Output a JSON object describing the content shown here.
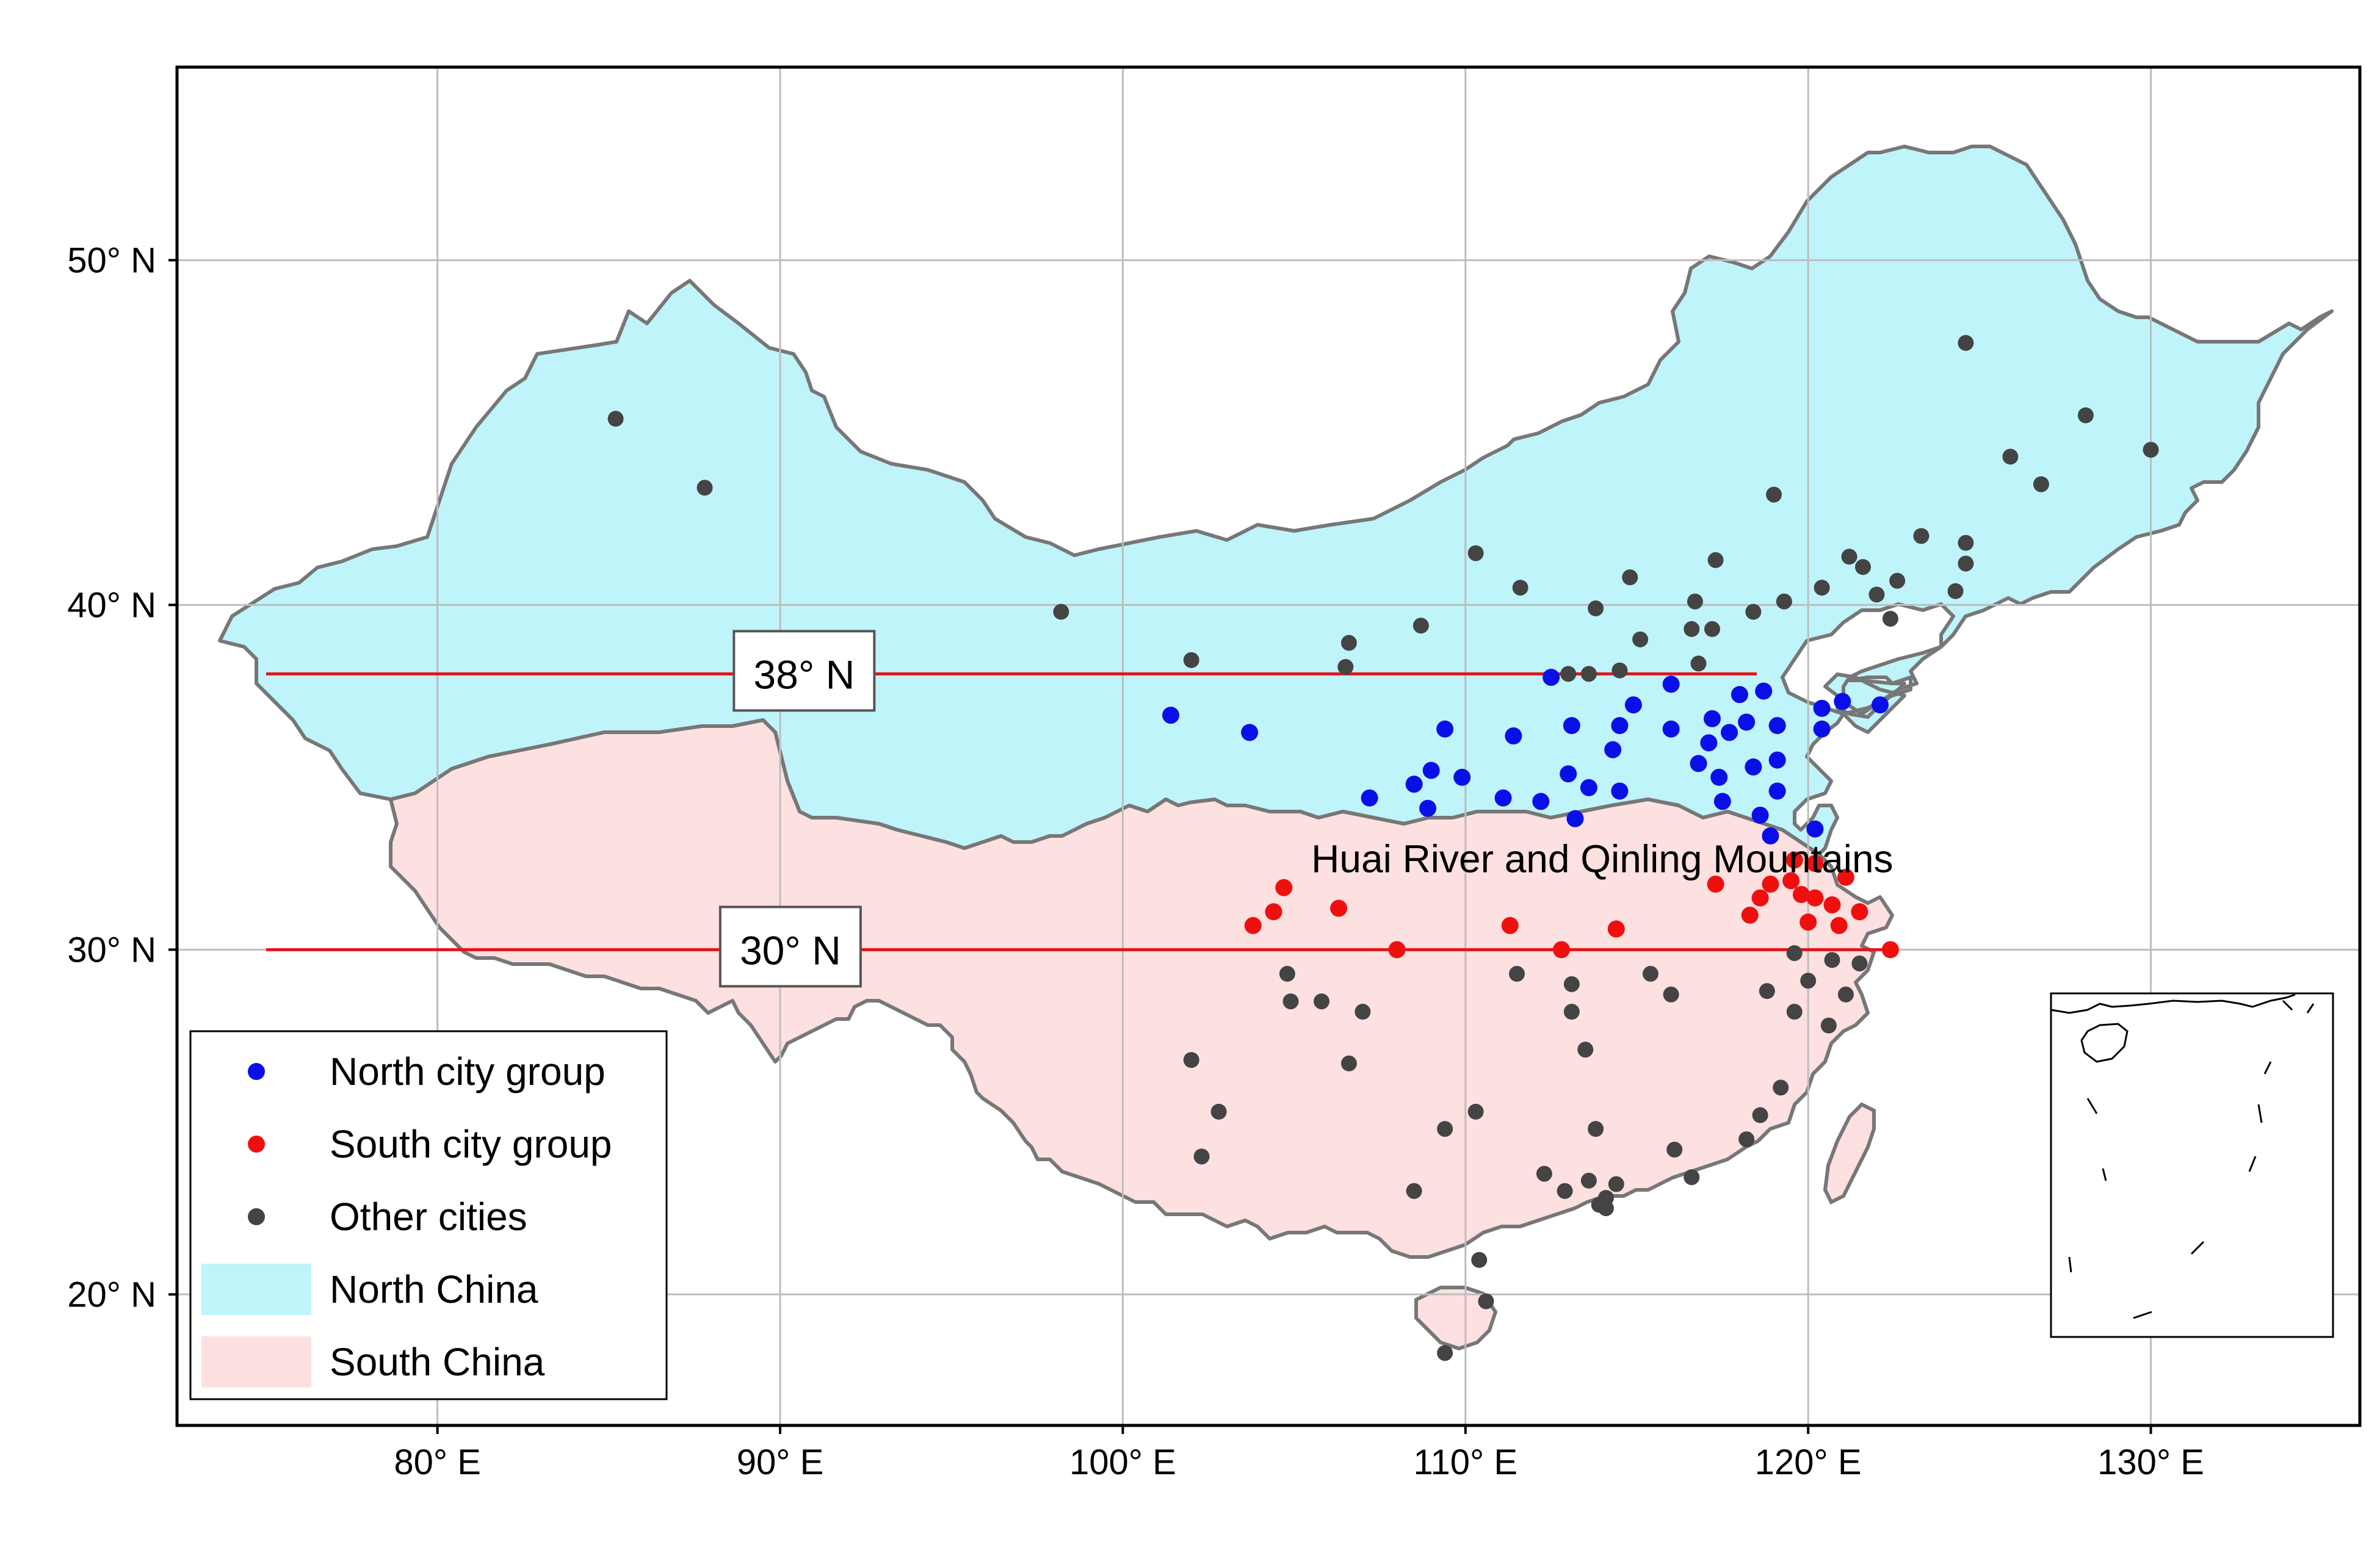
{
  "map": {
    "x_ticks": [
      {
        "lon": 80,
        "label": "80° E"
      },
      {
        "lon": 90,
        "label": "90° E"
      },
      {
        "lon": 100,
        "label": "100° E"
      },
      {
        "lon": 110,
        "label": "110° E"
      },
      {
        "lon": 120,
        "label": "120° E"
      },
      {
        "lon": 130,
        "label": "130° E"
      }
    ],
    "y_ticks": [
      {
        "lat": 20,
        "label": "20° N"
      },
      {
        "lat": 30,
        "label": "30° N"
      },
      {
        "lat": 40,
        "label": "40° N"
      },
      {
        "lat": 50,
        "label": "50° N"
      }
    ],
    "lines": [
      {
        "lat": 38,
        "lon_start": 75,
        "lon_end": 118.5,
        "label": "38° N",
        "label_lon": 90.7,
        "color": "#e3141c"
      },
      {
        "lat": 30,
        "lon_start": 75,
        "lon_end": 122.5,
        "label": "30° N",
        "label_lon": 90.3,
        "color": "#e3141c"
      }
    ],
    "annotation": {
      "text": "Huai River and Qinling Mountains",
      "lon": 105.5,
      "lat": 32.6
    },
    "regions": [
      {
        "name": "North China",
        "color": "#bff4fb"
      },
      {
        "name": "South China",
        "color": "#fde0e0"
      }
    ],
    "legend": [
      {
        "label": "North city group",
        "type": "point",
        "color": "#0a0fe8"
      },
      {
        "label": "South city group",
        "type": "point",
        "color": "#f00f0f"
      },
      {
        "label": "Other cities",
        "type": "point",
        "color": "#444444"
      },
      {
        "label": "North China",
        "type": "patch",
        "color": "#bff4fb"
      },
      {
        "label": "South China",
        "type": "patch",
        "color": "#fde0e0"
      }
    ],
    "border_color": "#777777",
    "north_cities": [
      [
        101.4,
        36.8
      ],
      [
        103.7,
        36.3
      ],
      [
        107.2,
        34.4
      ],
      [
        108.5,
        34.8
      ],
      [
        108.9,
        34.1
      ],
      [
        109.0,
        35.2
      ],
      [
        109.4,
        36.4
      ],
      [
        109.9,
        35.0
      ],
      [
        111.1,
        34.4
      ],
      [
        111.4,
        36.2
      ],
      [
        112.2,
        34.3
      ],
      [
        112.5,
        37.9
      ],
      [
        113.0,
        35.1
      ],
      [
        113.1,
        36.5
      ],
      [
        113.2,
        33.8
      ],
      [
        113.6,
        34.7
      ],
      [
        114.3,
        35.8
      ],
      [
        114.5,
        36.5
      ],
      [
        114.5,
        34.6
      ],
      [
        114.9,
        37.1
      ],
      [
        116.0,
        37.7
      ],
      [
        116.0,
        36.4
      ],
      [
        116.8,
        35.4
      ],
      [
        117.1,
        36.0
      ],
      [
        117.2,
        36.7
      ],
      [
        117.4,
        35.0
      ],
      [
        117.5,
        34.3
      ],
      [
        117.7,
        36.3
      ],
      [
        118.0,
        37.4
      ],
      [
        118.2,
        36.6
      ],
      [
        118.4,
        35.3
      ],
      [
        118.6,
        33.9
      ],
      [
        118.7,
        37.5
      ],
      [
        118.9,
        33.3
      ],
      [
        119.1,
        35.5
      ],
      [
        119.1,
        34.6
      ],
      [
        119.1,
        36.5
      ],
      [
        120.2,
        33.5
      ],
      [
        120.4,
        37.0
      ],
      [
        120.4,
        36.4
      ],
      [
        121.0,
        37.2
      ],
      [
        122.1,
        37.1
      ]
    ],
    "south_cities": [
      [
        103.8,
        30.7
      ],
      [
        104.4,
        31.1
      ],
      [
        104.7,
        31.8
      ],
      [
        106.3,
        31.2
      ],
      [
        108.0,
        30.0
      ],
      [
        111.3,
        30.7
      ],
      [
        112.8,
        30.0
      ],
      [
        114.4,
        30.6
      ],
      [
        117.3,
        31.9
      ],
      [
        118.3,
        31.0
      ],
      [
        118.6,
        31.5
      ],
      [
        118.9,
        31.9
      ],
      [
        119.5,
        32.0
      ],
      [
        119.6,
        32.6
      ],
      [
        119.8,
        31.6
      ],
      [
        120.0,
        30.8
      ],
      [
        120.2,
        31.5
      ],
      [
        120.2,
        32.5
      ],
      [
        120.7,
        31.3
      ],
      [
        120.9,
        30.7
      ],
      [
        121.1,
        32.1
      ],
      [
        121.5,
        31.1
      ],
      [
        122.4,
        30.0
      ]
    ],
    "other_cities": [
      [
        85.2,
        45.4
      ],
      [
        87.8,
        43.4
      ],
      [
        98.2,
        39.8
      ],
      [
        102.0,
        38.4
      ],
      [
        106.5,
        38.2
      ],
      [
        106.6,
        38.9
      ],
      [
        108.7,
        39.4
      ],
      [
        110.3,
        41.5
      ],
      [
        111.6,
        40.5
      ],
      [
        113.0,
        38.0
      ],
      [
        113.6,
        38.0
      ],
      [
        113.8,
        39.9
      ],
      [
        114.5,
        38.1
      ],
      [
        114.8,
        40.8
      ],
      [
        115.1,
        39.0
      ],
      [
        116.6,
        39.3
      ],
      [
        116.7,
        40.1
      ],
      [
        116.8,
        38.3
      ],
      [
        117.2,
        39.3
      ],
      [
        117.3,
        41.3
      ],
      [
        118.4,
        39.8
      ],
      [
        119.0,
        43.2
      ],
      [
        119.3,
        40.1
      ],
      [
        120.4,
        40.5
      ],
      [
        121.2,
        41.4
      ],
      [
        121.6,
        41.1
      ],
      [
        122.0,
        40.3
      ],
      [
        122.4,
        39.6
      ],
      [
        122.6,
        40.7
      ],
      [
        123.3,
        42.0
      ],
      [
        124.3,
        40.4
      ],
      [
        124.6,
        41.2
      ],
      [
        124.6,
        41.8
      ],
      [
        124.6,
        47.6
      ],
      [
        125.9,
        44.3
      ],
      [
        126.8,
        43.5
      ],
      [
        128.1,
        45.5
      ],
      [
        130.0,
        44.5
      ],
      [
        102.0,
        26.8
      ],
      [
        102.3,
        24.0
      ],
      [
        102.8,
        25.3
      ],
      [
        104.8,
        29.3
      ],
      [
        104.9,
        28.5
      ],
      [
        105.8,
        28.5
      ],
      [
        106.6,
        26.7
      ],
      [
        107.0,
        28.2
      ],
      [
        108.5,
        23.0
      ],
      [
        109.4,
        24.8
      ],
      [
        109.4,
        18.3
      ],
      [
        110.3,
        25.3
      ],
      [
        110.4,
        21.0
      ],
      [
        110.6,
        19.8
      ],
      [
        111.5,
        29.3
      ],
      [
        112.3,
        23.5
      ],
      [
        112.9,
        23.0
      ],
      [
        113.1,
        28.2
      ],
      [
        113.1,
        29.0
      ],
      [
        113.5,
        27.1
      ],
      [
        113.6,
        23.3
      ],
      [
        113.8,
        24.8
      ],
      [
        113.9,
        22.6
      ],
      [
        114.1,
        22.5
      ],
      [
        114.1,
        22.8
      ],
      [
        114.4,
        23.2
      ],
      [
        115.4,
        29.3
      ],
      [
        116.0,
        28.7
      ],
      [
        116.1,
        24.2
      ],
      [
        116.6,
        23.4
      ],
      [
        118.2,
        24.5
      ],
      [
        118.6,
        25.2
      ],
      [
        118.8,
        28.8
      ],
      [
        119.2,
        26.0
      ],
      [
        119.6,
        28.2
      ],
      [
        119.6,
        29.9
      ],
      [
        120.0,
        29.1
      ],
      [
        120.6,
        27.8
      ],
      [
        120.7,
        29.7
      ],
      [
        121.1,
        28.7
      ],
      [
        121.5,
        29.6
      ]
    ]
  }
}
